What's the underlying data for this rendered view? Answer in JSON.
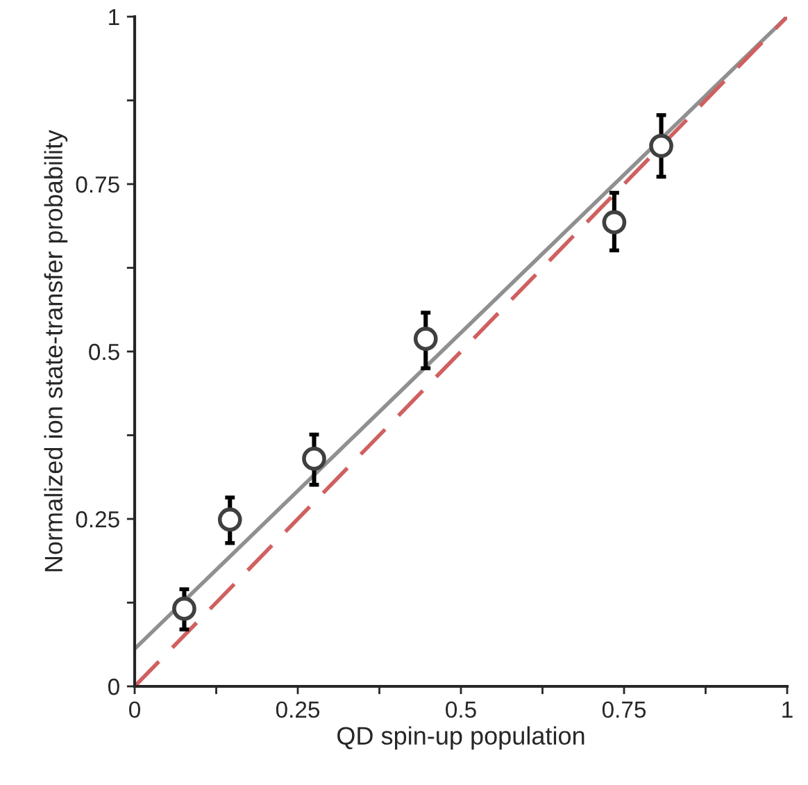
{
  "chart_data": {
    "type": "scatter",
    "xlabel": "QD spin-up population",
    "ylabel": "Normalized ion state-transfer probability",
    "xlim": [
      0,
      1
    ],
    "ylim": [
      0,
      1
    ],
    "xticks": [
      0,
      {
        "value": 0.125,
        "label": null
      },
      0.25,
      {
        "value": 0.375,
        "label": null
      },
      0.5,
      {
        "value": 0.625,
        "label": null
      },
      0.75,
      {
        "value": 0.875,
        "label": null
      },
      1
    ],
    "yticks": [
      0,
      {
        "value": 0.125,
        "label": null
      },
      0.25,
      {
        "value": 0.375,
        "label": null
      },
      0.5,
      {
        "value": 0.625,
        "label": null
      },
      0.75,
      {
        "value": 0.875,
        "label": null
      },
      1
    ],
    "grid": false,
    "legend": false,
    "series": [
      {
        "type": "line",
        "color": "#909090",
        "line_style": "solid",
        "marker": "none",
        "x": [
          0,
          1
        ],
        "values": [
          0.056,
          1.0
        ]
      },
      {
        "type": "line",
        "color": "#d06060",
        "line_style": "dashed",
        "marker": "none",
        "x": [
          0,
          1
        ],
        "values": [
          0,
          1
        ]
      },
      {
        "color": "#404040",
        "marker": "circle",
        "x": [
          0.076,
          0.146,
          0.275,
          0.446,
          0.735,
          0.807
        ],
        "values": [
          0.116,
          0.249,
          0.34,
          0.519,
          0.693,
          0.807
        ],
        "errors": [
          [
            0.085,
            0.145
          ],
          [
            0.214,
            0.282
          ],
          [
            0.301,
            0.376
          ],
          [
            0.475,
            0.558
          ],
          [
            0.651,
            0.737
          ],
          [
            0.761,
            0.853
          ]
        ]
      }
    ]
  }
}
